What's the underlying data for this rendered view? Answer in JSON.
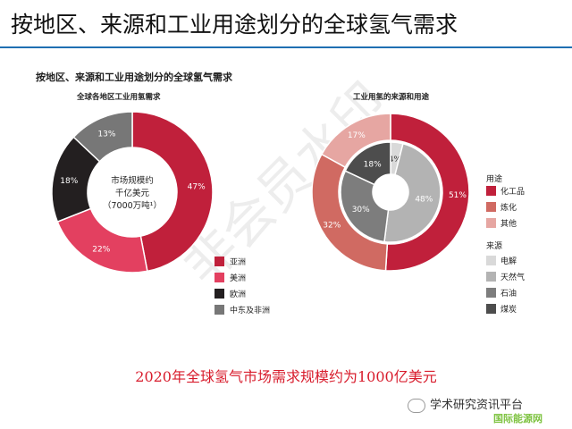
{
  "slide_title": "按地区、来源和工业用途划分的全球氢气需求",
  "chart_title": "按地区、来源和工业用途划分的全球氢气需求",
  "caption": "2020年全球氢气市场需求规模约为1000亿美元",
  "watermark": "非会员水印",
  "footer": {
    "badge": "学术研究资讯平台",
    "sub": "国际能源网"
  },
  "colors": {
    "asia": "#c0203b",
    "america": "#e34060",
    "europe": "#231f20",
    "mena": "#777777",
    "chemical": "#c0203b",
    "refining": "#d06a62",
    "other": "#e6a6a2",
    "electrolysis": "#d9d9d9",
    "natural_gas": "#b3b3b3",
    "oil": "#7d7d7d",
    "coal": "#4d4d4d"
  },
  "chart_data": [
    {
      "type": "pie",
      "title": "全球各地区工业用氢需求",
      "center_text": [
        "市场规模约",
        "千亿美元",
        "（7000万吨¹）"
      ],
      "slices": [
        {
          "name": "亚洲",
          "value": 47,
          "label": "47%",
          "color": "#c0203b"
        },
        {
          "name": "美洲",
          "value": 22,
          "label": "22%",
          "color": "#e34060"
        },
        {
          "name": "欧洲",
          "value": 18,
          "label": "18%",
          "color": "#231f20"
        },
        {
          "name": "中东及非洲",
          "value": 13,
          "label": "13%",
          "color": "#777777"
        }
      ],
      "legend_position": "bottom-right"
    },
    {
      "type": "pie",
      "title": "工业用氢的来源和用途",
      "outer_ring": {
        "legend_title": "用途",
        "slices": [
          {
            "name": "化工品",
            "value": 51,
            "label": "51%",
            "color": "#c0203b"
          },
          {
            "name": "炼化",
            "value": 32,
            "label": "32%",
            "color": "#d06a62"
          },
          {
            "name": "其他",
            "value": 17,
            "label": "17%",
            "color": "#e6a6a2"
          }
        ]
      },
      "inner_ring": {
        "legend_title": "来源",
        "slices": [
          {
            "name": "电解",
            "value": 4,
            "label": "4%",
            "color": "#d9d9d9"
          },
          {
            "name": "天然气",
            "value": 48,
            "label": "48%",
            "color": "#b3b3b3"
          },
          {
            "name": "石油",
            "value": 30,
            "label": "30%",
            "color": "#7d7d7d"
          },
          {
            "name": "煤炭",
            "value": 18,
            "label": "18%",
            "color": "#4d4d4d"
          }
        ]
      },
      "legend_position": "right"
    }
  ]
}
